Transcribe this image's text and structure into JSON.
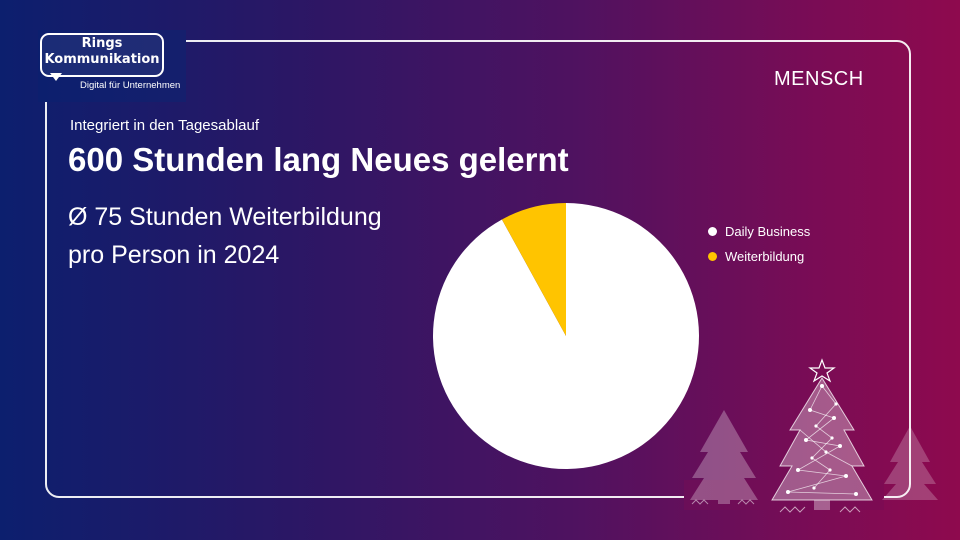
{
  "brand": {
    "logo_line1": "Rings",
    "logo_line2": "Kommunikation",
    "tagline": "Digital für Unternehmen"
  },
  "section_label": "MENSCH",
  "kicker": "Integriert in den Tagesablauf",
  "headline": "600 Stunden lang Neues gelernt",
  "subline_1": "Ø 75 Stunden Weiterbildung",
  "subline_2": "pro Person in 2024",
  "colors": {
    "daily_business": "#ffffff",
    "weiterbildung": "#ffc400"
  },
  "chart_data": {
    "type": "pie",
    "title": "",
    "slices": [
      {
        "label": "Daily Business",
        "value": 92,
        "color": "#ffffff"
      },
      {
        "label": "Weiterbildung",
        "value": 8,
        "color": "#ffc400"
      }
    ],
    "legend_position": "right"
  }
}
